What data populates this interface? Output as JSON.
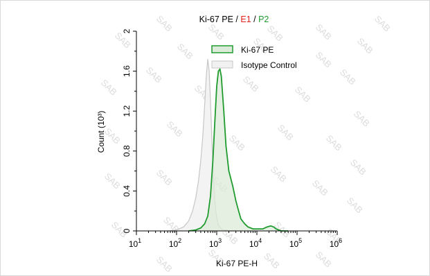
{
  "chart_data": {
    "type": "area",
    "title_parts": [
      {
        "text": "Ki-67 PE",
        "color": "#000000"
      },
      {
        "text": " / ",
        "color": "#000000"
      },
      {
        "text": "E1",
        "color": "#e0201b"
      },
      {
        "text": " / ",
        "color": "#000000"
      },
      {
        "text": "P2",
        "color": "#1e9a2e"
      }
    ],
    "xlabel": "Ki-67 PE-H",
    "ylabel": "Count (10³)",
    "x_scale": "log",
    "xlim": [
      10,
      1000000
    ],
    "ylim": [
      0,
      2
    ],
    "x_ticks": [
      {
        "base": "10",
        "exp": "1"
      },
      {
        "base": "10",
        "exp": "2"
      },
      {
        "base": "10",
        "exp": "3"
      },
      {
        "base": "10",
        "exp": "4"
      },
      {
        "base": "10",
        "exp": "5"
      },
      {
        "base": "10",
        "exp": "6"
      }
    ],
    "y_ticks": [
      "0",
      "0.4",
      "0.8",
      "1.2",
      "1.6",
      "2"
    ],
    "y_tick_values": [
      0,
      0.4,
      0.8,
      1.2,
      1.6,
      2
    ],
    "watermark": "SAB",
    "legend_position": "top-right",
    "series": [
      {
        "name": "Isotype Control",
        "line_color": "#c6c6c6",
        "fill_color": "#f1f1f1",
        "x": [
          63,
          100,
          150,
          200,
          250,
          300,
          350,
          400,
          450,
          500,
          550,
          600,
          650,
          700,
          750,
          800,
          900,
          1000,
          1100,
          1300,
          1500,
          2000,
          3000
        ],
        "y": [
          0.0,
          0.01,
          0.04,
          0.1,
          0.2,
          0.33,
          0.5,
          0.7,
          0.95,
          1.25,
          1.55,
          1.72,
          1.6,
          1.3,
          0.95,
          0.65,
          0.3,
          0.13,
          0.06,
          0.02,
          0.01,
          0.0,
          0.0
        ]
      },
      {
        "name": "Ki-67 PE",
        "line_color": "#1f9b2e",
        "fill_color": "#dcebd9",
        "x": [
          200,
          300,
          400,
          500,
          600,
          700,
          800,
          900,
          1000,
          1100,
          1200,
          1300,
          1500,
          1700,
          2000,
          2500,
          3000,
          3500,
          4000,
          5000,
          6000,
          8000,
          10000,
          14000,
          18000,
          22000,
          26000,
          30000,
          40000,
          60000
        ],
        "y": [
          0.0,
          0.01,
          0.03,
          0.07,
          0.15,
          0.35,
          0.7,
          1.1,
          1.45,
          1.6,
          1.62,
          1.55,
          1.2,
          0.85,
          0.6,
          0.45,
          0.3,
          0.2,
          0.12,
          0.07,
          0.04,
          0.02,
          0.02,
          0.02,
          0.04,
          0.05,
          0.04,
          0.02,
          0.0,
          0.0
        ]
      }
    ]
  }
}
